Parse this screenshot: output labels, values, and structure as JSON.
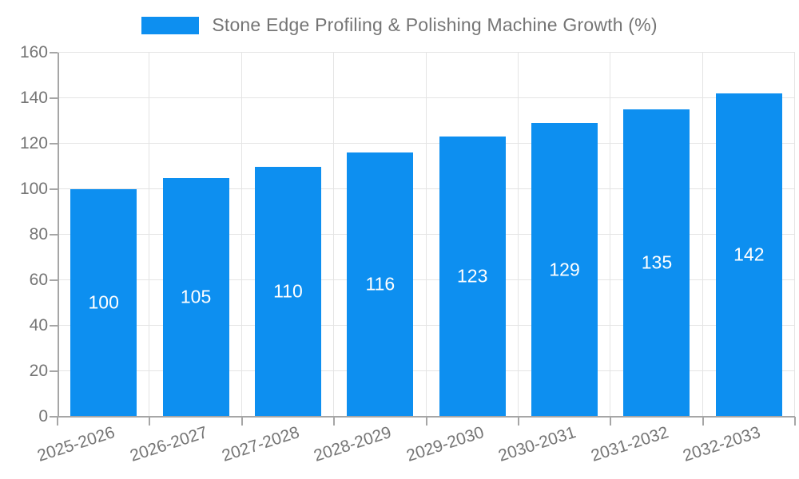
{
  "legend": {
    "swatch_color": "#0d8ff0"
  },
  "colors": {
    "bar": "#0d8ff0",
    "bar_label": "#ffffff",
    "axis_line": "#a6a6a6",
    "gridline": "#e4e4e4",
    "tick_label": "#757575",
    "background": "#ffffff"
  },
  "chart_data": {
    "type": "bar",
    "title": "Stone Edge Profiling & Polishing Machine Growth (%)",
    "categories": [
      "2025-2026",
      "2026-2027",
      "2027-2028",
      "2028-2029",
      "2029-2030",
      "2030-2031",
      "2031-2032",
      "2032-2033"
    ],
    "values": [
      100,
      105,
      110,
      116,
      123,
      129,
      135,
      142
    ],
    "bar_labels": [
      "100",
      "105",
      "110",
      "116",
      "123",
      "129",
      "135",
      "142"
    ],
    "bar_label_position": "inside-center",
    "xlabel": "",
    "ylabel": "",
    "ylim": [
      0,
      160
    ],
    "yticks": [
      0,
      20,
      40,
      60,
      80,
      100,
      120,
      140,
      160
    ],
    "grid": "horizontal-and-vertical",
    "legend_position": "top-center",
    "x_tick_rotation_deg": -18
  }
}
